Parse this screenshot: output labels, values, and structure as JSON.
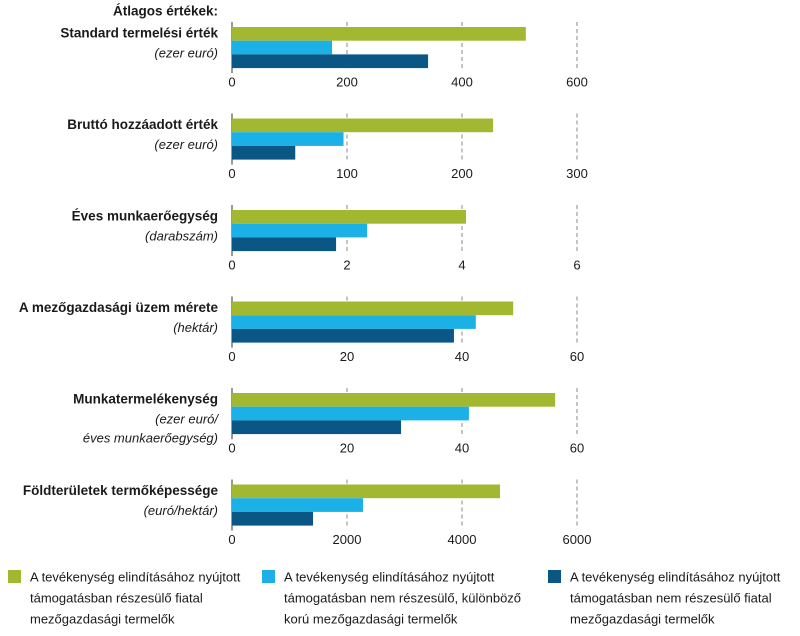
{
  "header": "Átlagos értékek:",
  "chart_data": [
    {
      "type": "bar",
      "title": "Standard termelési érték",
      "subtitle": [
        "(ezer euró)"
      ],
      "values": [
        511,
        174,
        341
      ],
      "xlim": [
        0,
        600
      ],
      "xticks": [
        0,
        200,
        400,
        600
      ]
    },
    {
      "type": "bar",
      "title": "Bruttó hozzáadott érték",
      "subtitle": [
        "(ezer euró)"
      ],
      "values": [
        227,
        97,
        55
      ],
      "xlim": [
        0,
        300
      ],
      "xticks": [
        0,
        100,
        200,
        300
      ]
    },
    {
      "type": "bar",
      "title": "Éves munkaerőegység",
      "subtitle": [
        "(darabszám)"
      ],
      "values": [
        4.07,
        2.35,
        1.81
      ],
      "xlim": [
        0,
        6
      ],
      "xticks": [
        0,
        2,
        4,
        6
      ]
    },
    {
      "type": "bar",
      "title": "A mezőgazdasági üzem mérete",
      "subtitle": [
        "(hektár)"
      ],
      "values": [
        48.9,
        42.4,
        38.6
      ],
      "xlim": [
        0,
        60
      ],
      "xticks": [
        0,
        20,
        40,
        60
      ]
    },
    {
      "type": "bar",
      "title": "Munkatermelékenység",
      "subtitle": [
        "(ezer euró/",
        "éves munkaerőegység)"
      ],
      "values": [
        56.2,
        41.2,
        29.4
      ],
      "xlim": [
        0,
        60
      ],
      "xticks": [
        0,
        20,
        40,
        60
      ]
    },
    {
      "type": "bar",
      "title": "Földterületek termőképessége",
      "subtitle": [
        "(euró/hektár)"
      ],
      "values": [
        4661,
        2278,
        1409
      ],
      "xlim": [
        0,
        6000
      ],
      "xticks": [
        0,
        2000,
        4000,
        6000
      ]
    }
  ],
  "legend": [
    {
      "color": "#a2b830",
      "lines": [
        "A tevékenység elindításához nyújtott",
        "támogatásban részesülő fiatal",
        "mezőgazdasági termelők"
      ]
    },
    {
      "color": "#1bb1e7",
      "lines": [
        "A tevékenység elindításához nyújtott",
        "támogatásban nem részesülő, különböző",
        "korú mezőgazdasági termelők"
      ]
    },
    {
      "color": "#0a5786",
      "lines": [
        "A tevékenység elindításához nyújtott",
        "támogatásban nem részesülő fiatal",
        "mezőgazdasági termelők"
      ]
    }
  ]
}
